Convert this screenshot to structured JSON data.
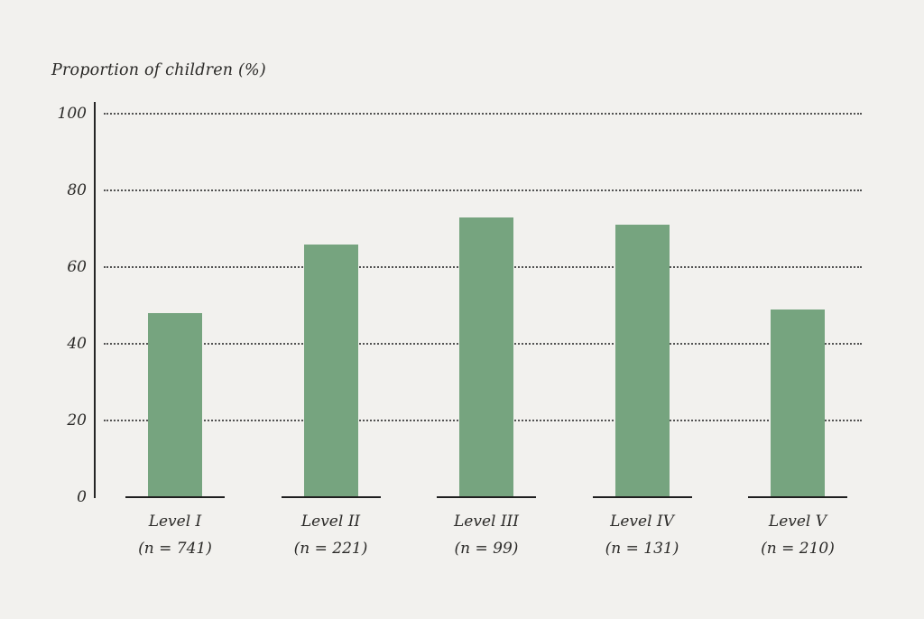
{
  "chart_data": {
    "type": "bar",
    "title": "Proportion of children (%)",
    "ylabel": "Proportion of children (%)",
    "xlabel": "",
    "categories": [
      "Level I",
      "Level II",
      "Level III",
      "Level IV",
      "Level V"
    ],
    "values": [
      48,
      66,
      73,
      71,
      49
    ],
    "sample_sizes": [
      "(n = 741)",
      "(n = 221)",
      "(n = 99)",
      "(n = 131)",
      "(n = 210)"
    ],
    "ylim": [
      0,
      100
    ],
    "yticks": [
      0,
      20,
      40,
      60,
      80,
      100
    ],
    "grid": "horizontal dotted gridlines at 20/40/60/80/100, none at 0",
    "legend": "none",
    "bar_color": "#76a47f",
    "axis_color": "#262626",
    "baseline_color": "#1f1f1f",
    "gridline_color": "#525252",
    "background_color": "#f2f1ee",
    "text_color": "#2b2a28"
  }
}
